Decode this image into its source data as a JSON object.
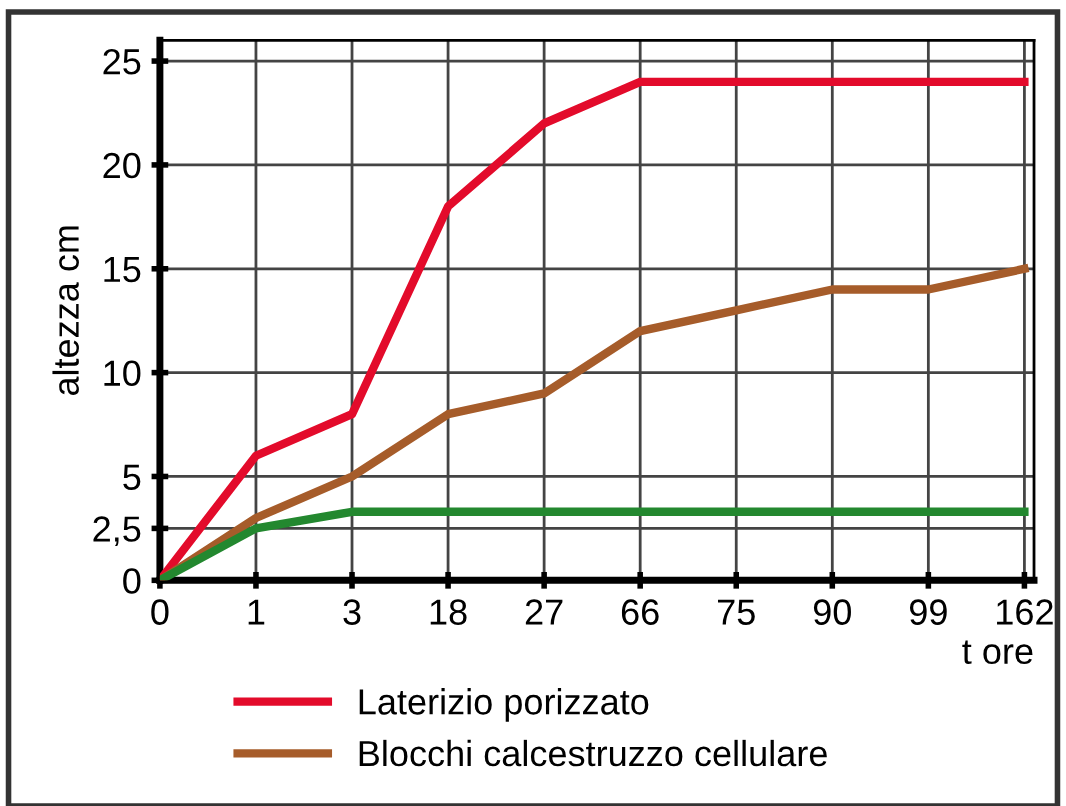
{
  "chart_data": {
    "type": "line",
    "categories": [
      "0",
      "1",
      "3",
      "18",
      "27",
      "66",
      "75",
      "90",
      "99",
      "162"
    ],
    "series": [
      {
        "name": "Laterizio porizzato",
        "color": "#e30b2b",
        "values": [
          0,
          6,
          8,
          18,
          22,
          24,
          24,
          24,
          24,
          24
        ]
      },
      {
        "name": "Blocchi calcestruzzo cellulare",
        "color": "#a65c2a",
        "values": [
          0,
          3,
          5,
          8,
          9,
          12,
          13,
          14,
          14,
          15
        ]
      },
      {
        "color": "#23882f",
        "values": [
          0,
          2.5,
          3.3,
          3.3,
          3.3,
          3.3,
          3.3,
          3.3,
          3.3,
          3.3
        ]
      }
    ],
    "xlabel": "t ore",
    "ylabel": "altezza cm",
    "ylim": [
      0,
      26
    ],
    "yticks": [
      0,
      {
        "value": 2.5,
        "label": "2,5"
      },
      5,
      10,
      15,
      20,
      25
    ],
    "grid": true,
    "legend": "bottom",
    "marker": "none",
    "line_style": "solid"
  }
}
